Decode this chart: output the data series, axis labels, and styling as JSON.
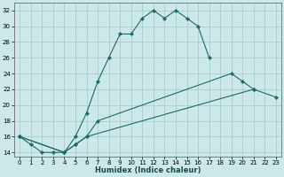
{
  "xlabel": "Humidex (Indice chaleur)",
  "background_color": "#cde8e8",
  "grid_color": "#a8cccc",
  "line_color": "#1a6b6b",
  "xlim": [
    -0.5,
    23.5
  ],
  "ylim": [
    13.5,
    33
  ],
  "xticks": [
    0,
    1,
    2,
    3,
    4,
    5,
    6,
    7,
    8,
    9,
    10,
    11,
    12,
    13,
    14,
    15,
    16,
    17,
    18,
    19,
    20,
    21,
    22,
    23
  ],
  "yticks": [
    14,
    16,
    18,
    20,
    22,
    24,
    26,
    28,
    30,
    32
  ],
  "series": [
    {
      "x": [
        0,
        1,
        2,
        3,
        4,
        5,
        6,
        7,
        8,
        9,
        10,
        11,
        12,
        13,
        14,
        15,
        16,
        17
      ],
      "y": [
        16,
        15,
        14,
        14,
        14,
        16,
        19,
        23,
        26,
        29,
        29,
        31,
        32,
        31,
        32,
        31,
        30,
        26
      ]
    },
    {
      "x": [
        0,
        4,
        5,
        6,
        7,
        19,
        20,
        21
      ],
      "y": [
        16,
        14,
        15,
        16,
        18,
        24,
        23,
        22
      ]
    },
    {
      "x": [
        0,
        4,
        5,
        6,
        21,
        23
      ],
      "y": [
        16,
        14,
        15,
        16,
        22,
        21
      ]
    }
  ]
}
